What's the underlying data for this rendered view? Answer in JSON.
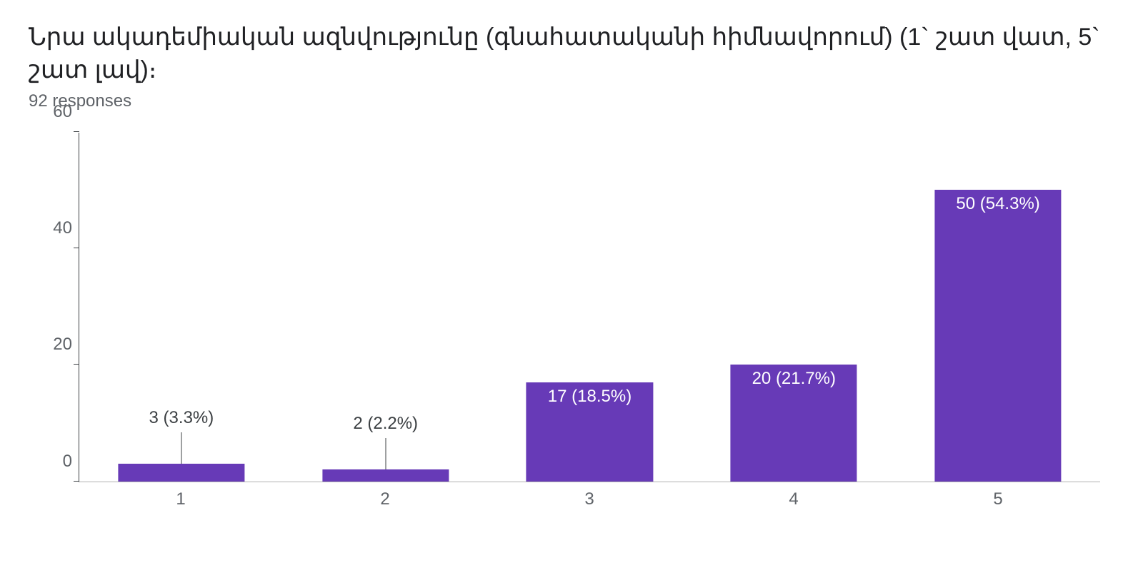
{
  "title": "Նրա ակադեմիական ազնվությունը (գնահատականի հիմնավորում)  (1` շատ վատ, 5` շատ լավ)։",
  "subtitle": "92 responses",
  "chart": {
    "type": "bar",
    "categories": [
      "1",
      "2",
      "3",
      "4",
      "5"
    ],
    "values": [
      3,
      2,
      17,
      20,
      50
    ],
    "percents": [
      "3.3%",
      "2.2%",
      "18.5%",
      "21.7%",
      "54.3%"
    ],
    "bar_color": "#673ab7",
    "label_color_outside": "#3c4043",
    "label_color_inside": "#ffffff",
    "ymin": 0,
    "ymax": 60,
    "ytick_step": 20,
    "yticks": [
      0,
      20,
      40,
      60
    ],
    "bar_width_pct": 62,
    "tick_fontsize": 24,
    "label_fontsize": 24,
    "background_color": "#ffffff",
    "axis_color": "#3c4043",
    "inside_label_threshold": 15
  }
}
